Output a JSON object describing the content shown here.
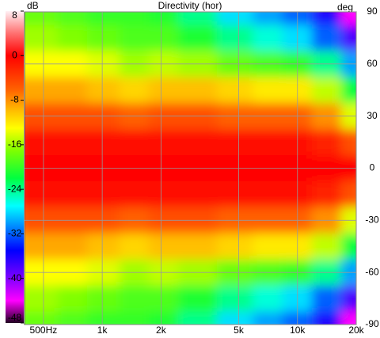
{
  "chart_data": {
    "type": "heatmap",
    "title": "Directivity (hor)",
    "colorbar_label": "dB",
    "y_label": "deg",
    "x": [
      400,
      500,
      700,
      1000,
      1500,
      2000,
      3000,
      5000,
      7000,
      10000,
      14000,
      20000
    ],
    "y": [
      90,
      75,
      60,
      45,
      30,
      15,
      0,
      -15,
      -30,
      -45,
      -60,
      -75,
      -90
    ],
    "z": [
      [
        -18,
        -18,
        -19,
        -20,
        -20,
        -21,
        -24,
        -28,
        -30,
        -32,
        -36,
        -44
      ],
      [
        -16,
        -16,
        -17,
        -18,
        -19,
        -19,
        -21,
        -24,
        -26,
        -28,
        -32,
        -38
      ],
      [
        -13,
        -13,
        -13,
        -14,
        -16,
        -15,
        -16,
        -18,
        -19,
        -20,
        -24,
        -30
      ],
      [
        -9,
        -9,
        -9,
        -10,
        -11,
        -10,
        -10,
        -11,
        -12,
        -12,
        -15,
        -22
      ],
      [
        -5,
        -5,
        -5,
        -5,
        -6,
        -5,
        -5,
        -6,
        -6,
        -6,
        -8,
        -14
      ],
      [
        -1,
        -1,
        -1,
        -1,
        -1,
        -1,
        -1,
        -1,
        -1,
        -1,
        -2,
        -5
      ],
      [
        0,
        0,
        0,
        0,
        0,
        0,
        0,
        0,
        0,
        0,
        0,
        0
      ],
      [
        -1,
        -1,
        -1,
        -1,
        -1,
        -1,
        -1,
        -1,
        -1,
        -1,
        -2,
        -5
      ],
      [
        -5,
        -5,
        -5,
        -5,
        -6,
        -5,
        -5,
        -6,
        -6,
        -6,
        -8,
        -14
      ],
      [
        -9,
        -9,
        -9,
        -10,
        -11,
        -10,
        -10,
        -11,
        -12,
        -12,
        -15,
        -22
      ],
      [
        -13,
        -13,
        -13,
        -14,
        -16,
        -15,
        -16,
        -18,
        -19,
        -20,
        -24,
        -30
      ],
      [
        -16,
        -16,
        -17,
        -18,
        -19,
        -19,
        -21,
        -24,
        -26,
        -28,
        -32,
        -38
      ],
      [
        -18,
        -18,
        -19,
        -20,
        -20,
        -21,
        -24,
        -28,
        -30,
        -32,
        -36,
        -44
      ]
    ],
    "xscale": "log",
    "xlim": [
      400,
      20000
    ],
    "xticks": [
      {
        "value": 500,
        "label": "500Hz"
      },
      {
        "value": 1000,
        "label": "1k"
      },
      {
        "value": 2000,
        "label": "2k"
      },
      {
        "value": 5000,
        "label": "5k"
      },
      {
        "value": 10000,
        "label": "10k"
      },
      {
        "value": 20000,
        "label": "20k"
      }
    ],
    "ylim": [
      -90,
      90
    ],
    "yticks": [
      90,
      60,
      30,
      0,
      -30,
      -60,
      -90
    ],
    "colorbar_lim": [
      -48,
      8
    ],
    "colorbar_ticks": [
      8,
      0,
      -8,
      -16,
      -24,
      -32,
      -40,
      -48
    ],
    "colorscale": [
      [
        8,
        "#fff0f4"
      ],
      [
        4,
        "#ff7070"
      ],
      [
        0,
        "#ff0000"
      ],
      [
        -6,
        "#ff6000"
      ],
      [
        -10,
        "#ffc000"
      ],
      [
        -13,
        "#ffff00"
      ],
      [
        -17,
        "#80ff00"
      ],
      [
        -22,
        "#00ff40"
      ],
      [
        -27,
        "#00ffff"
      ],
      [
        -31,
        "#0080ff"
      ],
      [
        -35,
        "#0000ff"
      ],
      [
        -40,
        "#8000ff"
      ],
      [
        -44,
        "#ff00ff"
      ],
      [
        -48,
        "#200020"
      ]
    ],
    "grid": true
  }
}
